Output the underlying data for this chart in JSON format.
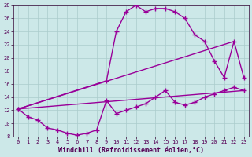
{
  "xlabel": "Windchill (Refroidissement éolien,°C)",
  "background_color": "#cce8e8",
  "line_color": "#990099",
  "grid_color": "#aacccc",
  "xlim": [
    -0.5,
    23.5
  ],
  "ylim": [
    8,
    28
  ],
  "xticks": [
    0,
    1,
    2,
    3,
    4,
    5,
    6,
    7,
    8,
    9,
    10,
    11,
    12,
    13,
    14,
    15,
    16,
    17,
    18,
    19,
    20,
    21,
    22,
    23
  ],
  "yticks": [
    8,
    10,
    12,
    14,
    16,
    18,
    20,
    22,
    24,
    26,
    28
  ],
  "line1_x": [
    0,
    1,
    2,
    3,
    4,
    5,
    6,
    7,
    8,
    9,
    10,
    11,
    12,
    13,
    14,
    15,
    16,
    17,
    18,
    19,
    20,
    21,
    22,
    23
  ],
  "line1_y": [
    12.2,
    11.0,
    10.5,
    9.3,
    9.0,
    8.5,
    8.2,
    8.5,
    9.0,
    13.5,
    11.5,
    12.0,
    12.5,
    13.0,
    14.0,
    15.0,
    13.2,
    12.8,
    13.2,
    14.0,
    14.5,
    15.0,
    15.5,
    15.0
  ],
  "line2_x": [
    0,
    9,
    10,
    11,
    12,
    13,
    14,
    15,
    16,
    17,
    18,
    19,
    20,
    21,
    22,
    23
  ],
  "line2_y": [
    12.2,
    16.5,
    24.0,
    27.0,
    28.0,
    27.0,
    27.5,
    27.5,
    27.0,
    26.0,
    23.5,
    22.5,
    19.5,
    17.0,
    22.5,
    17.0
  ],
  "line3_x": [
    0,
    22
  ],
  "line3_y": [
    12.2,
    22.5
  ],
  "line4_x": [
    0,
    23
  ],
  "line4_y": [
    12.2,
    15.0
  ],
  "marker": "+",
  "markersize": 4,
  "linewidth": 1.0,
  "tick_fontsize": 5,
  "label_fontsize": 6,
  "fig_width": 3.2,
  "fig_height": 2.0,
  "dpi": 100
}
